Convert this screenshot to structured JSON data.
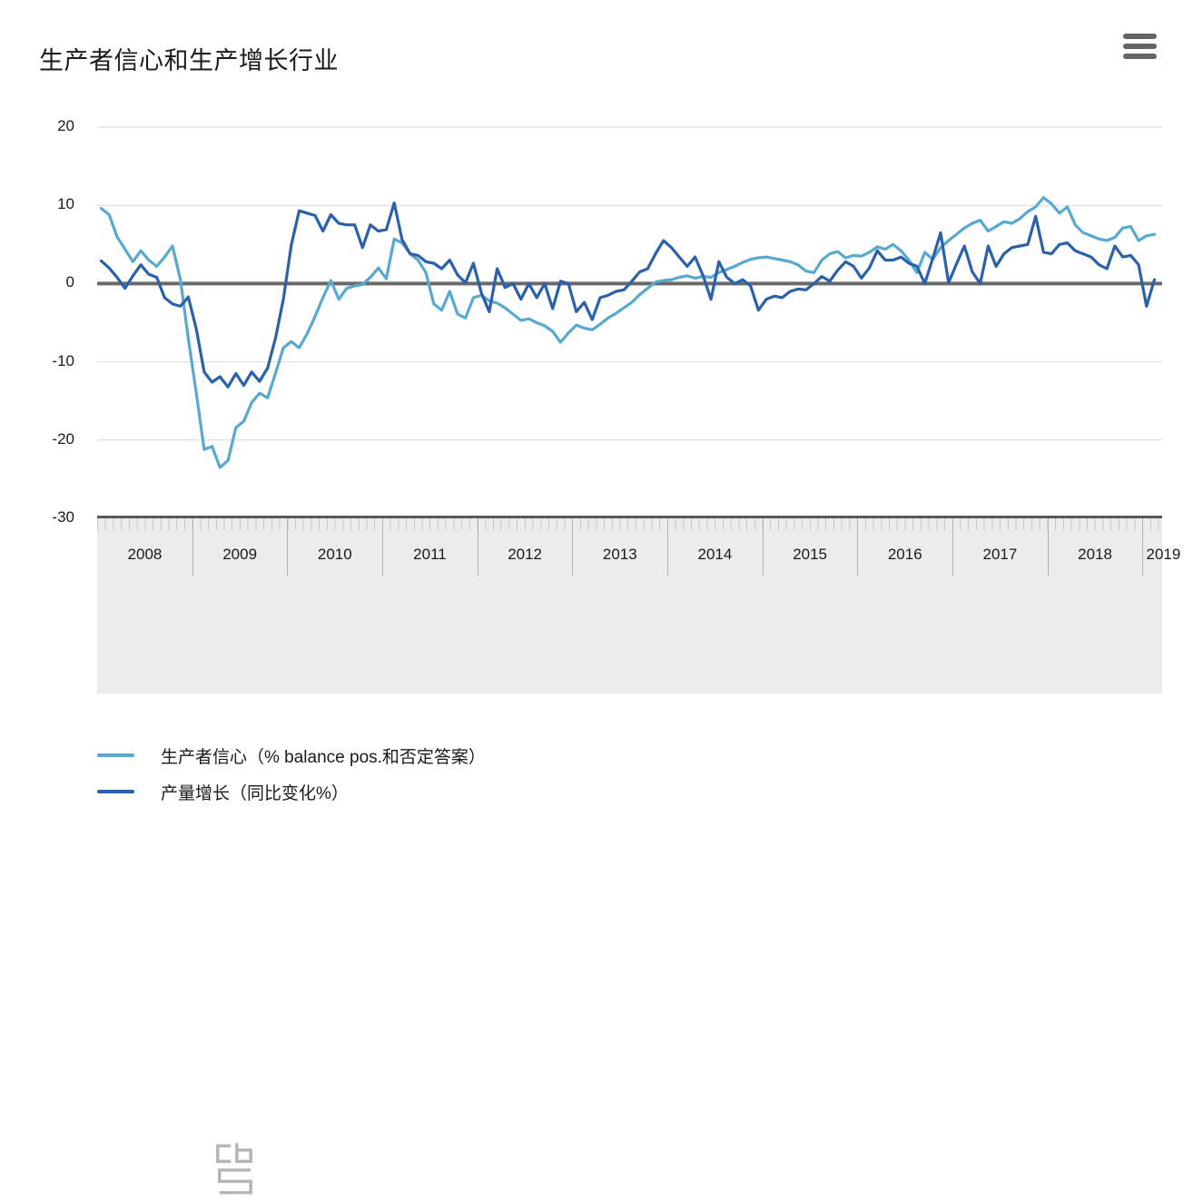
{
  "header": {
    "title": "生产者信心和生产增长行业",
    "menu_icon": "hamburger-icon"
  },
  "colors": {
    "series1": "#58A9CF",
    "series2": "#2B61AB",
    "zero_line": "#6a6a6a",
    "grid_line": "#d9d9d9",
    "axis_band_bg": "#ececec",
    "axis_line": "#5a5a5a",
    "tick": "#c6c6c6",
    "year_separator": "#b2b2b2",
    "logo_gray": "#b5b5b5",
    "menu_gray": "#646464"
  },
  "footer": {
    "logo_icon": "cbs-logo"
  },
  "chart_data": {
    "type": "line",
    "title": "生产者信心和生产增长行业",
    "x_start": "2008-01",
    "x_end": "2019-02",
    "year_labels": [
      "2008",
      "2009",
      "2010",
      "2011",
      "2012",
      "2013",
      "2014",
      "2015",
      "2016",
      "2017",
      "2018",
      "2019"
    ],
    "y_ticks": [
      20,
      10,
      0,
      -10,
      -20,
      -30
    ],
    "ylim": [
      -30,
      20
    ],
    "grid": "horizontal",
    "legend_position": "bottom-left",
    "series": [
      {
        "name": "生产者信心（% balance pos.和否定答案）",
        "color": "#58A9CF",
        "values": [
          9.6,
          8.8,
          6.0,
          4.4,
          2.8,
          4.2,
          3.0,
          2.2,
          3.4,
          4.8,
          0.5,
          -7.0,
          -14.0,
          -21.2,
          -20.8,
          -23.5,
          -22.6,
          -18.4,
          -17.6,
          -15.2,
          -14.0,
          -14.6,
          -11.5,
          -8.2,
          -7.4,
          -8.2,
          -6.4,
          -4.2,
          -1.8,
          0.4,
          -2.0,
          -0.6,
          -0.3,
          -0.1,
          0.8,
          2.0,
          0.6,
          5.7,
          5.2,
          3.8,
          3.0,
          1.4,
          -2.6,
          -3.4,
          -1.0,
          -3.9,
          -4.4,
          -1.8,
          -1.5,
          -2.2,
          -2.5,
          -3.1,
          -3.9,
          -4.7,
          -4.5,
          -5.0,
          -5.4,
          -6.1,
          -7.5,
          -6.3,
          -5.3,
          -5.7,
          -5.9,
          -5.2,
          -4.4,
          -3.8,
          -3.1,
          -2.4,
          -1.4,
          -0.6,
          0.2,
          0.4,
          0.5,
          0.8,
          1.0,
          0.7,
          0.9,
          0.8,
          1.4,
          1.8,
          2.2,
          2.7,
          3.1,
          3.3,
          3.4,
          3.2,
          3.0,
          2.8,
          2.4,
          1.6,
          1.4,
          3.0,
          3.8,
          4.1,
          3.3,
          3.6,
          3.5,
          4.0,
          4.7,
          4.4,
          5.0,
          4.2,
          3.0,
          1.4,
          4.0,
          3.1,
          4.6,
          5.5,
          6.3,
          7.1,
          7.7,
          8.1,
          6.7,
          7.3,
          7.9,
          7.7,
          8.3,
          9.2,
          9.8,
          11.0,
          10.2,
          9.0,
          9.8,
          7.5,
          6.5,
          6.1,
          5.7,
          5.5,
          5.9,
          7.1,
          7.3,
          5.5,
          6.1,
          6.3
        ]
      },
      {
        "name": "产量增长（同比变化%）",
        "color": "#2B61AB",
        "values": [
          2.9,
          2.0,
          0.8,
          -0.6,
          1.0,
          2.4,
          1.2,
          0.8,
          -1.8,
          -2.6,
          -2.9,
          -1.7,
          -5.8,
          -11.3,
          -12.6,
          -11.9,
          -13.2,
          -11.5,
          -13.0,
          -11.3,
          -12.5,
          -10.8,
          -7.0,
          -2.0,
          4.9,
          9.3,
          9.0,
          8.7,
          6.7,
          8.8,
          7.7,
          7.5,
          7.5,
          4.6,
          7.5,
          6.7,
          6.9,
          10.3,
          5.6,
          3.8,
          3.6,
          2.8,
          2.6,
          1.9,
          3.0,
          1.1,
          0.1,
          2.6,
          -1.2,
          -3.6,
          1.9,
          -0.5,
          0.0,
          -2.0,
          0.0,
          -1.8,
          0.0,
          -3.2,
          0.3,
          0.0,
          -3.6,
          -2.4,
          -4.6,
          -1.8,
          -1.5,
          -1.0,
          -0.8,
          0.3,
          1.5,
          1.9,
          3.8,
          5.5,
          4.6,
          3.4,
          2.2,
          3.4,
          1.0,
          -2.0,
          2.8,
          0.8,
          0.0,
          0.5,
          -0.3,
          -3.4,
          -2.0,
          -1.6,
          -1.8,
          -1.0,
          -0.7,
          -0.8,
          0.0,
          0.9,
          0.3,
          1.7,
          2.8,
          2.2,
          0.7,
          2.0,
          4.2,
          3.0,
          3.0,
          3.4,
          2.6,
          2.2,
          0.0,
          3.2,
          6.5,
          0.1,
          2.5,
          4.8,
          1.5,
          0.0,
          4.8,
          2.2,
          3.8,
          4.6,
          4.8,
          5.0,
          8.6,
          4.0,
          3.8,
          5.0,
          5.2,
          4.2,
          3.8,
          3.4,
          2.4,
          1.9,
          4.8,
          3.4,
          3.6,
          2.4,
          -2.9,
          0.5
        ]
      }
    ]
  }
}
